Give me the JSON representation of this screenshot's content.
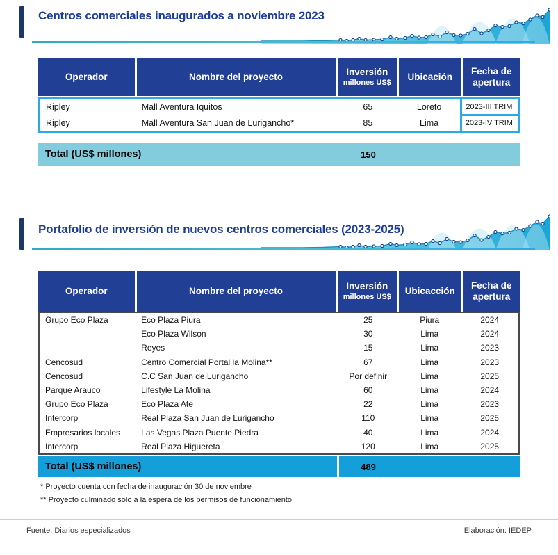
{
  "colors": {
    "header_bg": "#213F94",
    "title_blue": "#1E3D98",
    "navy_bar": "#1E3866",
    "cyan_accent": "#29ABE2",
    "total1_bg": "#82CCDE",
    "total2_bg": "#149FDB"
  },
  "section1": {
    "title": "Centros comerciales inaugurados a noviembre 2023",
    "table": {
      "columns": [
        {
          "label": "Operador"
        },
        {
          "label": "Nombre del proyecto"
        },
        {
          "label": "Inversión",
          "sub": "millones US$"
        },
        {
          "label": "Ubicación"
        },
        {
          "label": "Fecha de apertura"
        }
      ],
      "rows": [
        [
          "Ripley",
          "Mall Aventura Iquitos",
          "65",
          "Loreto",
          "2023-III TRIM"
        ],
        [
          "Ripley",
          "Mall Aventura San Juan de Lurigancho*",
          "85",
          "Lima",
          "2023-IV TRIM"
        ]
      ],
      "total_label": "Total (US$ millones)",
      "total_value": "150"
    }
  },
  "section2": {
    "title": "Portafolio de inversión de nuevos centros comerciales (2023-2025)",
    "table": {
      "columns": [
        {
          "label": "Operador"
        },
        {
          "label": "Nombre del proyecto"
        },
        {
          "label": "Inversión",
          "sub": "millones US$"
        },
        {
          "label": "Ubicacción"
        },
        {
          "label": "Fecha de apertura"
        }
      ],
      "rows": [
        [
          "Grupo Eco Plaza",
          "Eco Plaza Piura",
          "25",
          "Piura",
          "2024"
        ],
        [
          "",
          "Eco Plaza Wilson",
          "30",
          "Lima",
          "2024"
        ],
        [
          "",
          "Reyes",
          "15",
          "Lima",
          "2023"
        ],
        [
          "Cencosud",
          "Centro Comercial Portal la Molina**",
          "67",
          "Lima",
          "2023"
        ],
        [
          "Cencosud",
          "C.C San Juan de Lurigancho",
          "Por definir",
          "Lima",
          "2025"
        ],
        [
          "Parque Arauco",
          "Lifestyle La Molina",
          "60",
          "Lima",
          "2024"
        ],
        [
          "Grupo Eco Plaza",
          "Eco Plaza Ate",
          "22",
          "Lima",
          "2023"
        ],
        [
          "Intercorp",
          "Real Plaza San Juan de Lurigancho",
          "110",
          "Lima",
          "2025"
        ],
        [
          "Empresarios locales",
          "Las Vegas Plaza Puente Piedra",
          "40",
          "Lima",
          "2024"
        ],
        [
          "Intercorp",
          "Real Plaza Higuereta",
          "120",
          "Lima",
          "2025"
        ]
      ],
      "total_label": "Total (US$ millones)",
      "total_value": "489"
    }
  },
  "footnotes": [
    "* Proyecto cuenta con fecha de inauguración 30 de noviembre",
    "** Proyecto  culminado solo a la espera de los permisos de funcionamiento"
  ],
  "footer": {
    "source": "Fuente: Diarios especializados",
    "elaboration": "Elaboración: IEDEP"
  }
}
